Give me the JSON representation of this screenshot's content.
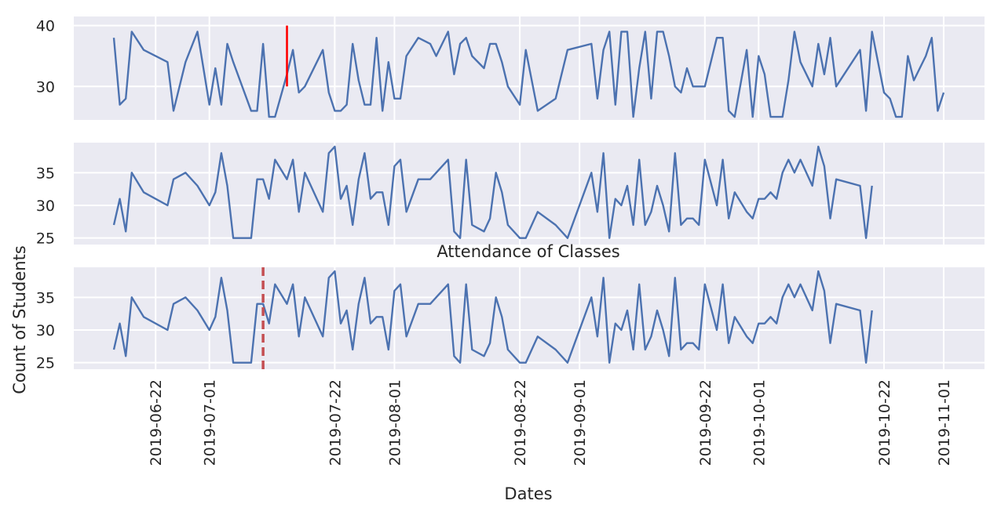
{
  "chart_data": [
    {
      "type": "line",
      "panel": "top",
      "title": "",
      "xlabel": "",
      "ylabel": "",
      "ylim": [
        24.5,
        41.5
      ],
      "yticks": [
        30,
        40
      ],
      "grid": true,
      "series": [
        {
          "color": "#4c72b0",
          "x": [
            "2019-06-15",
            "2019-06-16",
            "2019-06-17",
            "2019-06-18",
            "2019-06-20",
            "2019-06-24",
            "2019-06-25",
            "2019-06-27",
            "2019-06-29",
            "2019-07-01",
            "2019-07-02",
            "2019-07-03",
            "2019-07-04",
            "2019-07-05",
            "2019-07-08",
            "2019-07-09",
            "2019-07-10",
            "2019-07-11",
            "2019-07-12",
            "2019-07-14",
            "2019-07-15",
            "2019-07-16",
            "2019-07-17",
            "2019-07-20",
            "2019-07-21",
            "2019-07-22",
            "2019-07-23",
            "2019-07-24",
            "2019-07-25",
            "2019-07-26",
            "2019-07-27",
            "2019-07-28",
            "2019-07-29",
            "2019-07-30",
            "2019-07-31",
            "2019-08-01",
            "2019-08-02",
            "2019-08-03",
            "2019-08-05",
            "2019-08-07",
            "2019-08-08",
            "2019-08-10",
            "2019-08-11",
            "2019-08-12",
            "2019-08-13",
            "2019-08-14",
            "2019-08-16",
            "2019-08-17",
            "2019-08-18",
            "2019-08-19",
            "2019-08-20",
            "2019-08-22",
            "2019-08-23",
            "2019-08-25",
            "2019-08-28",
            "2019-08-30",
            "2019-09-03",
            "2019-09-04",
            "2019-09-05",
            "2019-09-06",
            "2019-09-07",
            "2019-09-08",
            "2019-09-09",
            "2019-09-10",
            "2019-09-11",
            "2019-09-12",
            "2019-09-13",
            "2019-09-14",
            "2019-09-15",
            "2019-09-16",
            "2019-09-17",
            "2019-09-18",
            "2019-09-19",
            "2019-09-20",
            "2019-09-21",
            "2019-09-22",
            "2019-09-24",
            "2019-09-25",
            "2019-09-26",
            "2019-09-27",
            "2019-09-29",
            "2019-09-30",
            "2019-10-01",
            "2019-10-02",
            "2019-10-03",
            "2019-10-04",
            "2019-10-05",
            "2019-10-06",
            "2019-10-07",
            "2019-10-08",
            "2019-10-10",
            "2019-10-11",
            "2019-10-12",
            "2019-10-13",
            "2019-10-14",
            "2019-10-18",
            "2019-10-19",
            "2019-10-20",
            "2019-10-22",
            "2019-10-23",
            "2019-10-24",
            "2019-10-25",
            "2019-10-26",
            "2019-10-27",
            "2019-10-29",
            "2019-10-30",
            "2019-10-31",
            "2019-11-01"
          ],
          "values": [
            38,
            27,
            28,
            39,
            36,
            34,
            26,
            34,
            39,
            27,
            33,
            27,
            37,
            34,
            26,
            26,
            37,
            25,
            25,
            32,
            36,
            29,
            30,
            36,
            29,
            26,
            26,
            27,
            37,
            31,
            27,
            27,
            38,
            26,
            34,
            28,
            28,
            35,
            38,
            37,
            35,
            39,
            32,
            37,
            38,
            35,
            33,
            37,
            37,
            34,
            30,
            27,
            36,
            26,
            28,
            36,
            37,
            28,
            36,
            39,
            27,
            39,
            39,
            25,
            33,
            39,
            28,
            39,
            39,
            35,
            30,
            29,
            33,
            30,
            30,
            30,
            38,
            38,
            26,
            25,
            36,
            25,
            35,
            32,
            25,
            25,
            25,
            31,
            39,
            34,
            30,
            37,
            32,
            38,
            30,
            36,
            26,
            39,
            29,
            28,
            25,
            25,
            35,
            31,
            35,
            38,
            26,
            29
          ],
          "vlines": [
            {
              "x": "2019-07-14",
              "y0": 30,
              "y1": 40,
              "color": "#ff0000",
              "style": "solid"
            }
          ]
        }
      ]
    },
    {
      "type": "line",
      "panel": "middle",
      "title": "",
      "xlabel": "",
      "ylabel": "",
      "ylim": [
        24.0,
        39.6
      ],
      "yticks": [
        25,
        30,
        35
      ],
      "grid": true,
      "series": [
        {
          "color": "#4c72b0",
          "values": [
            27,
            31,
            26,
            35,
            32,
            30,
            34,
            35,
            33,
            30,
            32,
            38,
            33,
            25,
            25,
            34,
            34,
            31,
            37,
            34,
            37,
            29,
            35,
            29,
            38,
            39,
            31,
            33,
            27,
            34,
            38,
            31,
            32,
            32,
            27,
            36,
            37,
            29,
            34,
            34,
            35,
            37,
            26,
            25,
            37,
            27,
            26,
            28,
            35,
            32,
            27,
            25,
            25,
            29,
            27,
            25,
            35,
            29,
            38,
            25,
            31,
            30,
            33,
            27,
            37,
            27,
            29,
            33,
            30,
            26,
            38,
            27,
            28,
            28,
            27,
            37,
            30,
            37,
            28,
            32,
            29,
            28,
            31,
            31,
            32,
            31,
            35,
            37,
            35,
            37,
            33,
            39,
            36,
            28,
            34,
            33,
            25,
            33
          ]
        }
      ]
    },
    {
      "type": "line",
      "panel": "bottom",
      "title": "Attendance of Classes",
      "xlabel": "Dates",
      "ylabel": "Count of Students",
      "ylim": [
        24.0,
        39.6
      ],
      "yticks": [
        25,
        30,
        35
      ],
      "grid": true,
      "xticks": [
        "2019-06-22",
        "2019-07-01",
        "2019-07-22",
        "2019-08-01",
        "2019-08-22",
        "2019-09-01",
        "2019-09-22",
        "2019-10-01",
        "2019-10-22",
        "2019-11-01"
      ],
      "series": [
        {
          "color": "#4c72b0",
          "same_as_panel": "middle",
          "vlines": [
            {
              "x": "2019-07-10",
              "color": "#c44e52",
              "style": "dashed"
            }
          ]
        }
      ]
    }
  ]
}
